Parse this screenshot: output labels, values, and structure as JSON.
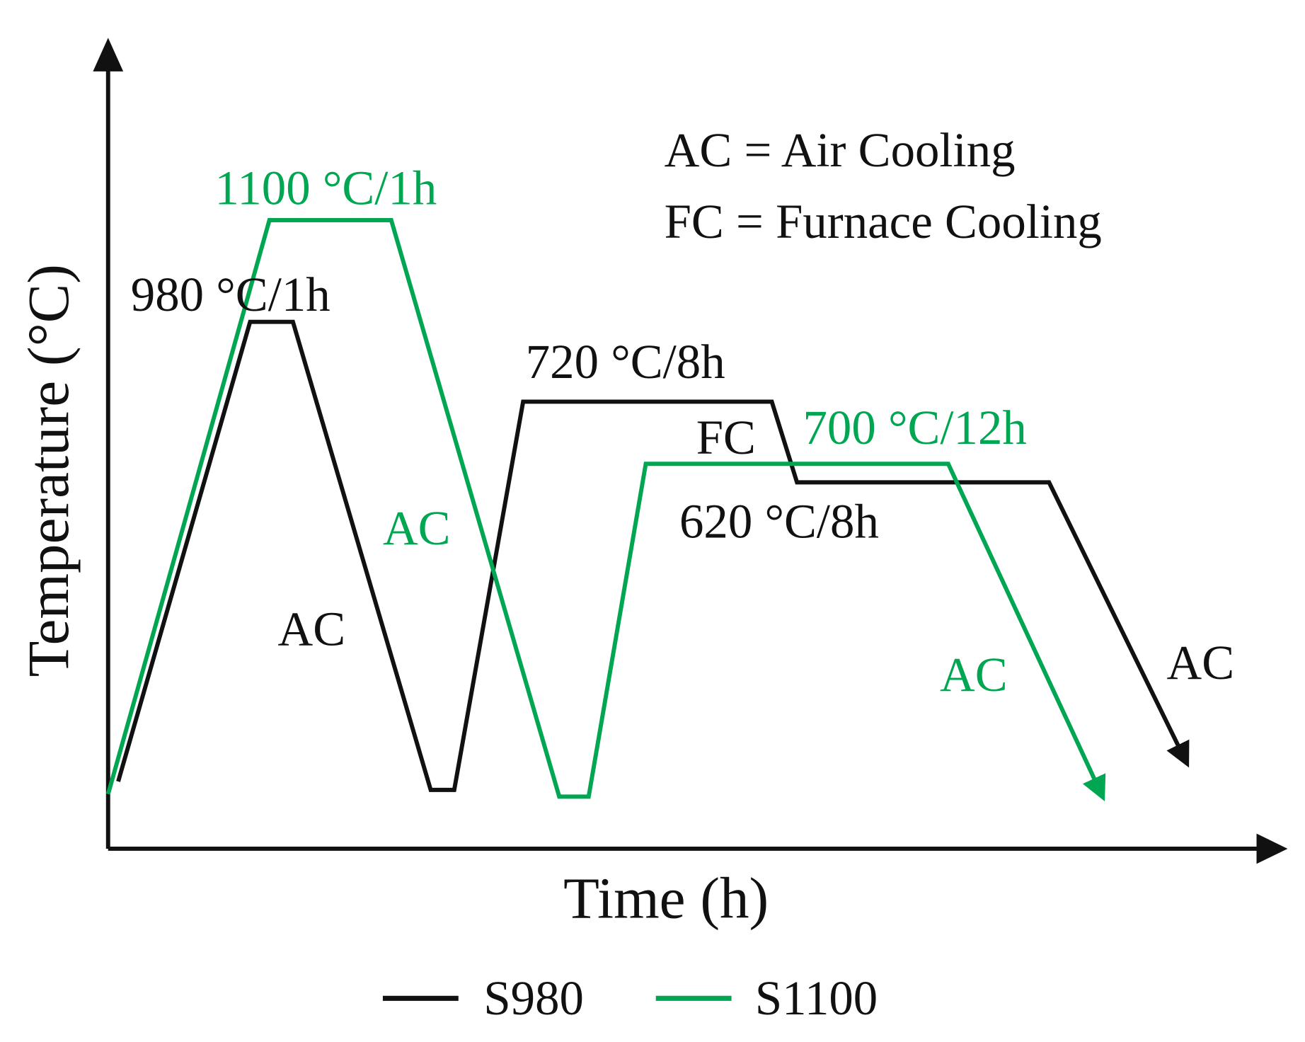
{
  "axes": {
    "x_label": "Time (h)",
    "y_label": "Temperature (°C)"
  },
  "key": [
    "AC = Air Cooling",
    "FC = Furnace Cooling"
  ],
  "annotations": {
    "s1100_solution": "1100 °C/1h",
    "s980_solution": "980 °C/1h",
    "s980_aging1": "720 °C/8h",
    "s980_fc": "FC",
    "s1100_aging": "700 °C/12h",
    "s980_aging2": "620 °C/8h",
    "s1100_ac1": "AC",
    "s980_ac1": "AC",
    "s1100_ac2": "AC",
    "s980_ac2": "AC"
  },
  "legend": [
    "S980",
    "S1100"
  ]
}
